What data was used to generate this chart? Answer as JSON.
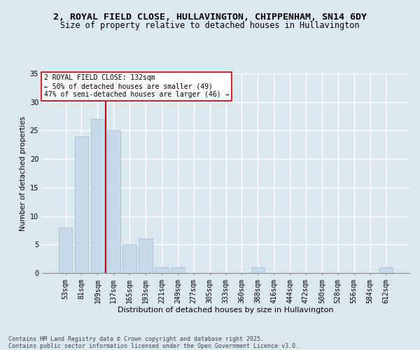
{
  "title1": "2, ROYAL FIELD CLOSE, HULLAVINGTON, CHIPPENHAM, SN14 6DY",
  "title2": "Size of property relative to detached houses in Hullavington",
  "xlabel": "Distribution of detached houses by size in Hullavington",
  "ylabel": "Number of detached properties",
  "categories": [
    "53sqm",
    "81sqm",
    "109sqm",
    "137sqm",
    "165sqm",
    "193sqm",
    "221sqm",
    "249sqm",
    "277sqm",
    "305sqm",
    "333sqm",
    "360sqm",
    "388sqm",
    "416sqm",
    "444sqm",
    "472sqm",
    "500sqm",
    "528sqm",
    "556sqm",
    "584sqm",
    "612sqm"
  ],
  "values": [
    8,
    24,
    27,
    25,
    5,
    6,
    1,
    1,
    0,
    0,
    0,
    0,
    1,
    0,
    0,
    0,
    0,
    0,
    0,
    0,
    1
  ],
  "bar_color": "#c8daea",
  "bar_edge_color": "#9abccc",
  "vline_color": "#cc0000",
  "vline_x_index": 3,
  "annotation_text": "2 ROYAL FIELD CLOSE: 132sqm\n← 50% of detached houses are smaller (49)\n47% of semi-detached houses are larger (46) →",
  "annotation_box_facecolor": "#ffffff",
  "annotation_box_edgecolor": "#cc0000",
  "ylim": [
    0,
    35
  ],
  "yticks": [
    0,
    5,
    10,
    15,
    20,
    25,
    30,
    35
  ],
  "ax_bg_color": "#dce8f0",
  "fig_bg_color": "#dce8f0",
  "grid_color": "#ffffff",
  "footer_text": "Contains HM Land Registry data © Crown copyright and database right 2025.\nContains public sector information licensed under the Open Government Licence v3.0.",
  "title1_fontsize": 9.5,
  "title2_fontsize": 8.5,
  "tick_fontsize": 7,
  "ylabel_fontsize": 7.5,
  "xlabel_fontsize": 8,
  "annot_fontsize": 7,
  "footer_fontsize": 6
}
